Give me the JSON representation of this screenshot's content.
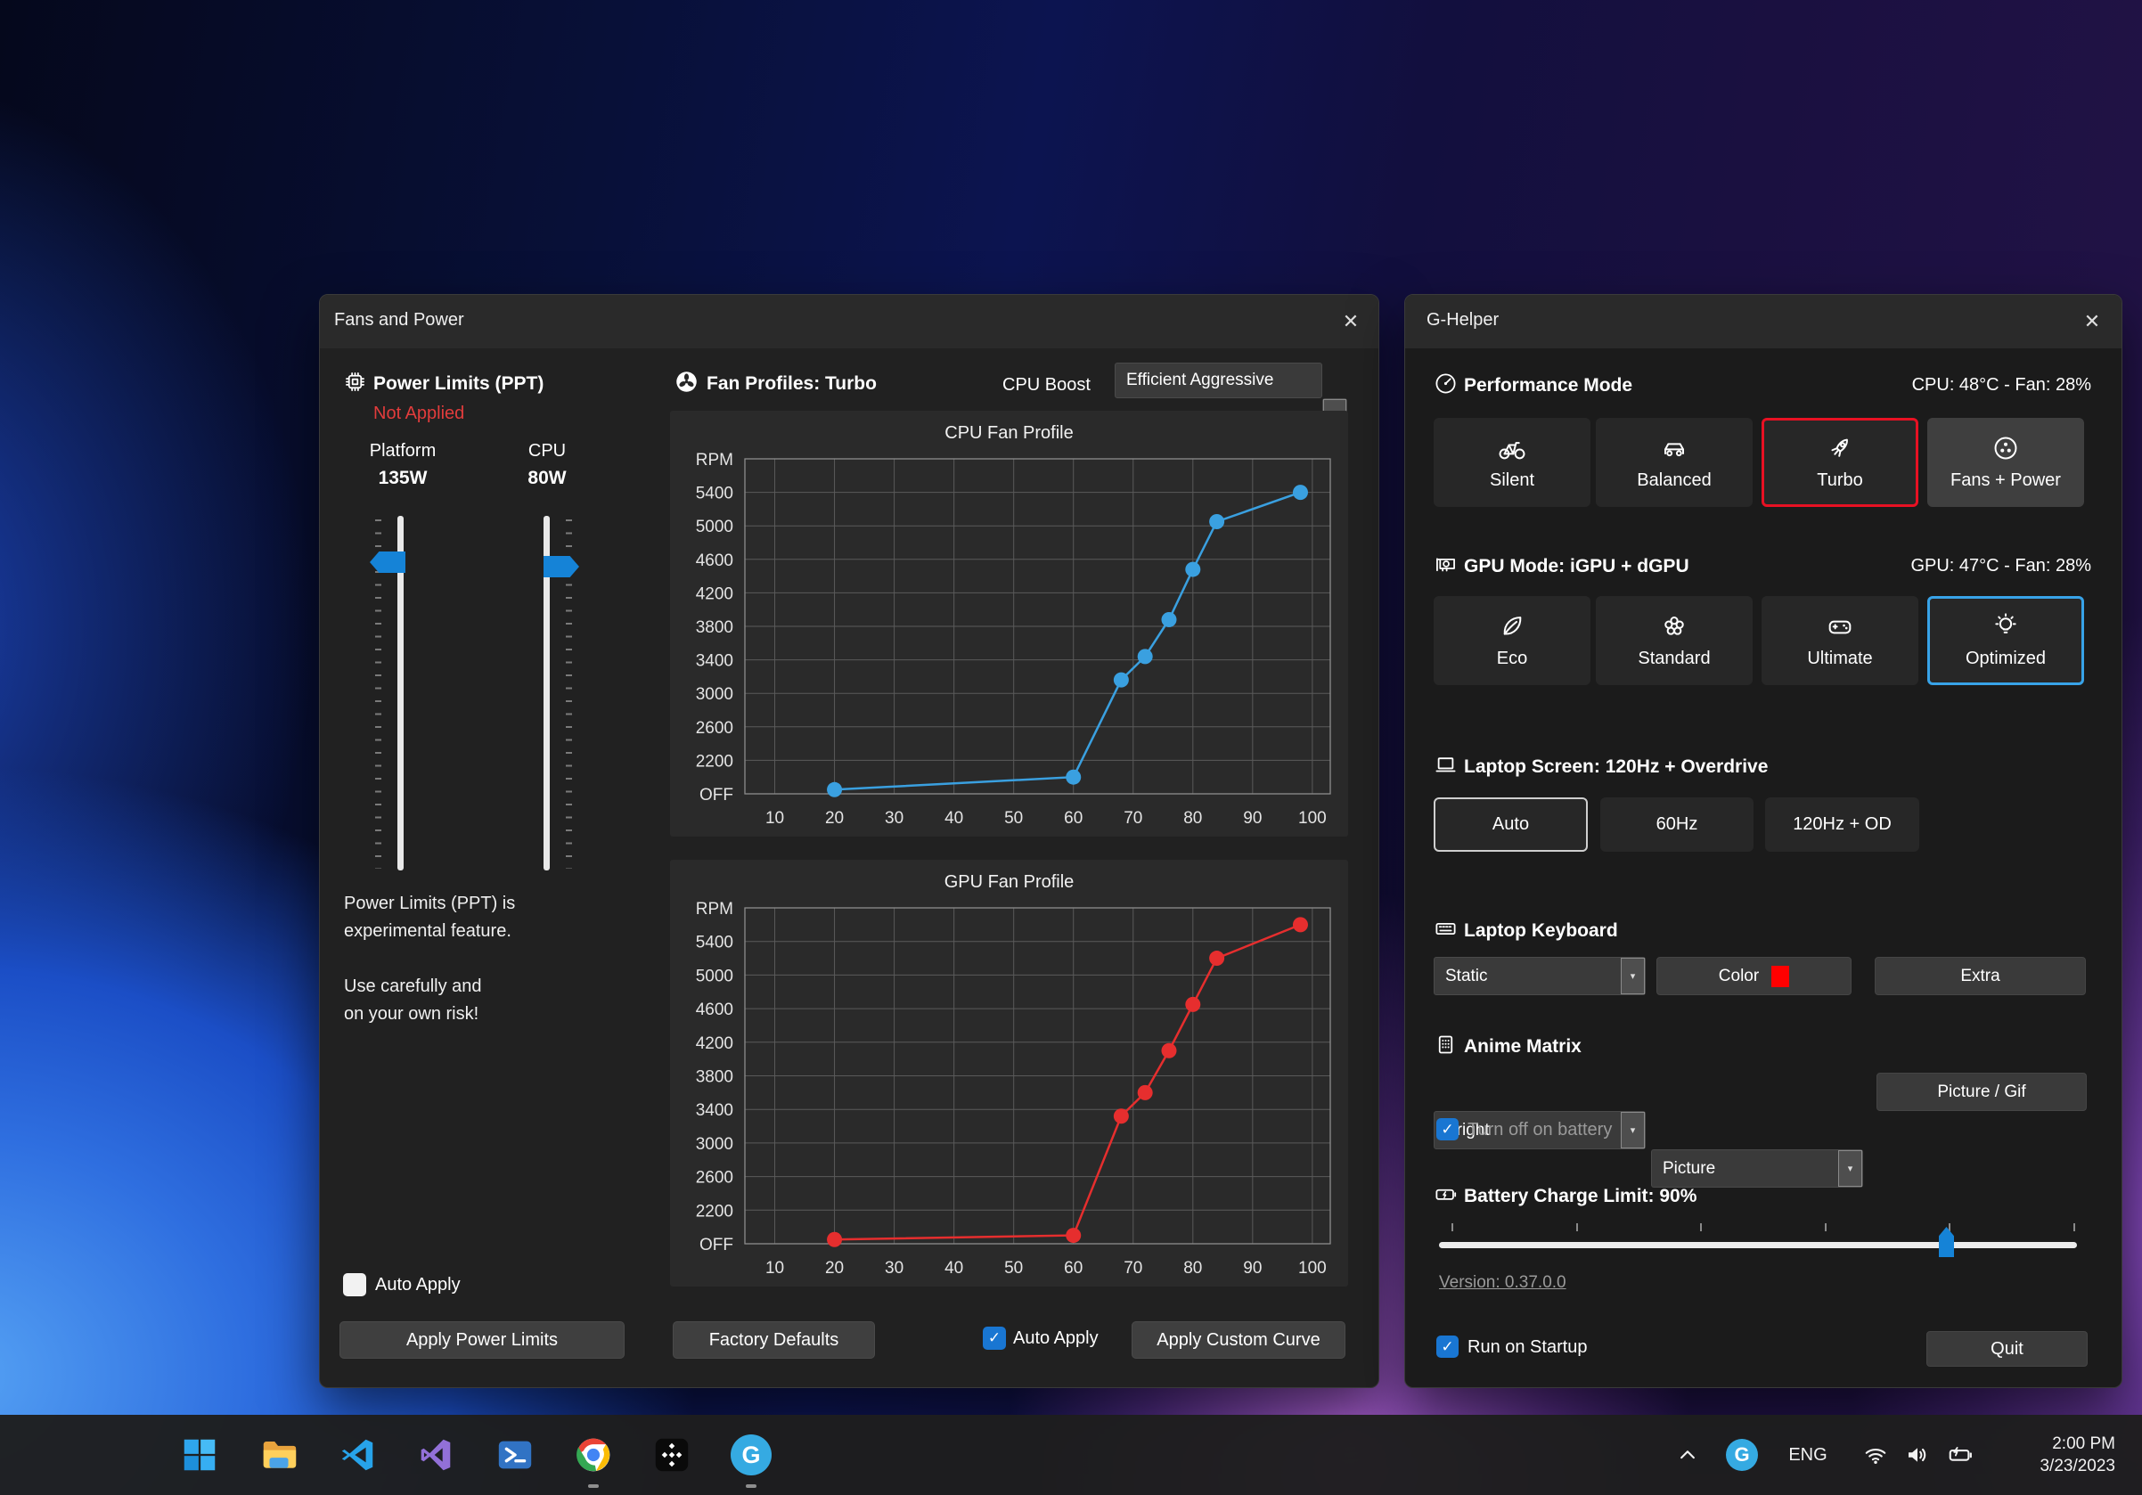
{
  "colors": {
    "accent_blue": "#1583d7",
    "checkbox_blue": "#1976d2",
    "selected_red_border": "#e81123",
    "selected_blue_border": "#38a3e8",
    "chart_blue": "#3aa0e0",
    "chart_red": "#e62e2e",
    "keyboard_color_swatch": "#ff0000",
    "not_applied_red": "#e23c3c"
  },
  "icons": {
    "close": "✕",
    "dropdown_arrow": "▾",
    "check": "✓",
    "named": [
      "chip-icon",
      "fan-icon",
      "gauge-icon",
      "bicycle-icon",
      "car-icon",
      "rocket-icon",
      "fan-power-icon",
      "gpu-card-icon",
      "leaf-icon",
      "flower-icon",
      "gamepad-icon",
      "bulb-icon",
      "laptop-icon",
      "keyboard-icon",
      "matrix-icon",
      "battery-icon",
      "chevron-up-icon",
      "wifi-icon",
      "speaker-icon",
      "tray-battery-icon"
    ]
  },
  "fans_window": {
    "title": "Fans and Power",
    "power_limits": {
      "heading": "Power Limits (PPT)",
      "status": "Not Applied",
      "platform_label": "Platform",
      "platform_value": "135W",
      "cpu_label": "CPU",
      "cpu_value": "80W",
      "note_line1": "Power Limits (PPT) is",
      "note_line2": "experimental feature.",
      "note_line3": "Use carefully and",
      "note_line4": "on your own risk!",
      "auto_apply_label": "Auto Apply",
      "auto_apply_checked": false,
      "apply_button": "Apply Power Limits"
    },
    "fan_profiles": {
      "heading": "Fan Profiles: Turbo",
      "cpu_boost_label": "CPU Boost",
      "cpu_boost_value": "Efficient Aggressive",
      "factory_defaults_button": "Factory Defaults",
      "auto_apply_label": "Auto Apply",
      "auto_apply_checked": true,
      "apply_curve_button": "Apply Custom Curve"
    }
  },
  "chart_data": [
    {
      "type": "line",
      "title": "CPU Fan Profile",
      "color": "#3aa0e0",
      "x": [
        20,
        60,
        68,
        72,
        76,
        80,
        84,
        98
      ],
      "y": [
        1850,
        2000,
        3160,
        3440,
        3880,
        4480,
        5050,
        5400
      ],
      "xticks": [
        10,
        20,
        30,
        40,
        50,
        60,
        70,
        80,
        90,
        100
      ],
      "yticks": [
        1800,
        2200,
        2600,
        3000,
        3400,
        3800,
        4200,
        4600,
        5000,
        5400,
        5800
      ],
      "ytick_labels": [
        "OFF",
        "2200",
        "2600",
        "3000",
        "3400",
        "3800",
        "4200",
        "4600",
        "5000",
        "5400",
        "RPM"
      ],
      "xlim": [
        5,
        103
      ],
      "ylim": [
        1800,
        5800
      ],
      "grid": true,
      "xlabel": "",
      "ylabel": "RPM"
    },
    {
      "type": "line",
      "title": "GPU Fan Profile",
      "color": "#e62e2e",
      "x": [
        20,
        60,
        68,
        72,
        76,
        80,
        84,
        98
      ],
      "y": [
        1850,
        1900,
        3320,
        3600,
        4100,
        4650,
        5200,
        5600
      ],
      "xticks": [
        10,
        20,
        30,
        40,
        50,
        60,
        70,
        80,
        90,
        100
      ],
      "yticks": [
        1800,
        2200,
        2600,
        3000,
        3400,
        3800,
        4200,
        4600,
        5000,
        5400,
        5800
      ],
      "ytick_labels": [
        "OFF",
        "2200",
        "2600",
        "3000",
        "3400",
        "3800",
        "4200",
        "4600",
        "5000",
        "5400",
        "RPM"
      ],
      "xlim": [
        5,
        103
      ],
      "ylim": [
        1800,
        5800
      ],
      "grid": true,
      "xlabel": "",
      "ylabel": "RPM"
    }
  ],
  "ghelper": {
    "title": "G-Helper",
    "performance": {
      "heading": "Performance Mode",
      "status": "CPU: 48°C  -  Fan: 28%",
      "modes": [
        "Silent",
        "Balanced",
        "Turbo",
        "Fans + Power"
      ],
      "selected": "Turbo"
    },
    "gpu": {
      "heading": "GPU Mode: iGPU + dGPU",
      "status": "GPU: 47°C  -  Fan: 28%",
      "modes": [
        "Eco",
        "Standard",
        "Ultimate",
        "Optimized"
      ],
      "selected": "Optimized"
    },
    "screen": {
      "heading": "Laptop Screen: 120Hz + Overdrive",
      "options": [
        "Auto",
        "60Hz",
        "120Hz + OD"
      ],
      "selected": "Auto"
    },
    "keyboard": {
      "heading": "Laptop Keyboard",
      "mode_value": "Static",
      "color_button": "Color",
      "extra_button": "Extra"
    },
    "matrix": {
      "heading": "Anime Matrix",
      "brightness_value": "Bright",
      "mode_value": "Picture",
      "picture_button": "Picture / Gif",
      "battery_toggle_label": "Turn off on battery",
      "battery_toggle_checked": true
    },
    "battery": {
      "heading": "Battery Charge Limit: 90%",
      "percent": 90
    },
    "version_link": "Version: 0.37.0.0",
    "startup_label": "Run on Startup",
    "startup_checked": true,
    "quit_button": "Quit"
  },
  "taskbar": {
    "apps": [
      "start",
      "file-explorer",
      "vscode",
      "visual-studio",
      "powershell",
      "chrome",
      "matrix-app",
      "g-helper"
    ],
    "running": [
      "chrome",
      "g-helper"
    ],
    "tray_language": "ENG",
    "tray_g_label": "G",
    "time": "2:00 PM",
    "date": "3/23/2023"
  }
}
